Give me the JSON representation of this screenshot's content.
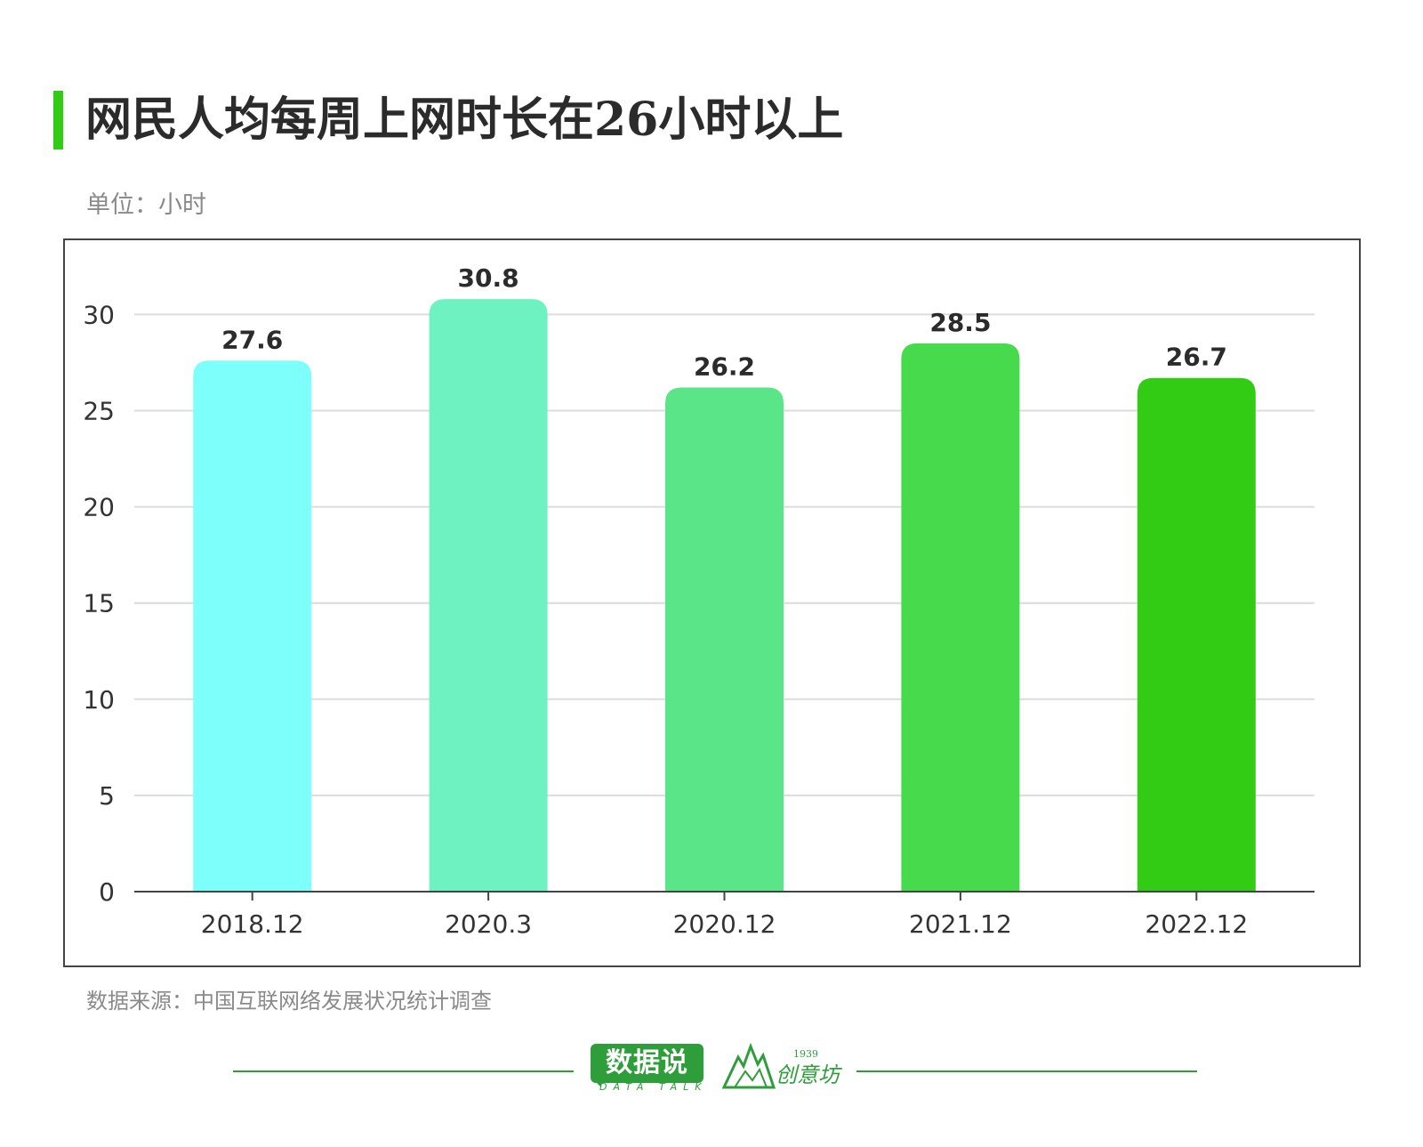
{
  "header": {
    "title": "网民人均每周上网时长在26小时以上",
    "unit": "单位：小时"
  },
  "footer": {
    "source": "数据来源：中国互联网络发展状况统计调查",
    "logo_text": "数据说",
    "logo_sub": "DATA TALK",
    "logo2_year": "1939",
    "logo2_text": "创意坊"
  },
  "colors": {
    "accent": "#33cc14",
    "text": "#2b2b2b",
    "muted": "#8a8a8a",
    "grid": "#dcdcdc",
    "axis": "#444444",
    "footer_green": "#2e9e3a"
  },
  "chart_data": {
    "type": "bar",
    "categories": [
      "2018.12",
      "2020.3",
      "2020.12",
      "2021.12",
      "2022.12"
    ],
    "values": [
      27.6,
      30.8,
      26.2,
      28.5,
      26.7
    ],
    "value_labels": [
      "27.6",
      "30.8",
      "26.2",
      "28.5",
      "26.7"
    ],
    "bar_colors": [
      "#7dfffb",
      "#6ff2c2",
      "#5ae688",
      "#46da4c",
      "#32cc14"
    ],
    "ylim": [
      0,
      30.8
    ],
    "yticks": [
      0,
      5,
      10,
      15,
      20,
      25,
      30
    ],
    "grid": true,
    "legend": "none"
  }
}
